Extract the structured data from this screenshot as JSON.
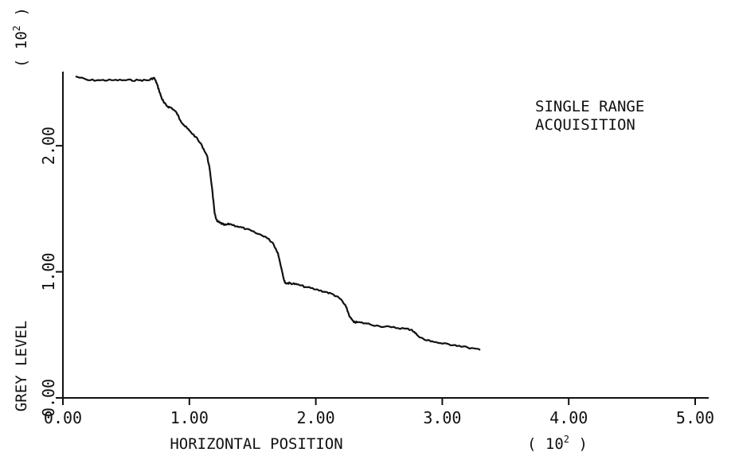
{
  "chart_data": {
    "type": "line",
    "title": "",
    "xlabel": "HORIZONTAL POSITION",
    "ylabel": "GREY LEVEL",
    "x_scale_label": "( 10",
    "x_scale_exp": "2",
    "x_scale_close": " )",
    "y_scale_label": "( 10",
    "y_scale_exp": "2",
    "y_scale_close": " )",
    "annotation": [
      "SINGLE RANGE",
      "ACQUISITION"
    ],
    "xlim": [
      0,
      5.0
    ],
    "ylim": [
      0,
      2.55
    ],
    "x_ticks": [
      {
        "value": 0.0,
        "label": "0.00"
      },
      {
        "value": 1.0,
        "label": "1.00"
      },
      {
        "value": 2.0,
        "label": "2.00"
      },
      {
        "value": 3.0,
        "label": "3.00"
      },
      {
        "value": 4.0,
        "label": "4.00"
      },
      {
        "value": 5.0,
        "label": "5.00"
      }
    ],
    "y_ticks": [
      {
        "value": 0.0,
        "label": "0.00"
      },
      {
        "value": 1.0,
        "label": "1.00"
      },
      {
        "value": 2.0,
        "label": "2.00"
      }
    ],
    "grid": false,
    "legend": "none",
    "line_color": "#111111",
    "series": [
      {
        "x": [
          0.1,
          0.2,
          0.3,
          0.4,
          0.5,
          0.6,
          0.68,
          0.72,
          0.74,
          0.76,
          0.78,
          0.8,
          0.83,
          0.86,
          0.9,
          0.93,
          0.96,
          1.0,
          1.05,
          1.1,
          1.14,
          1.16,
          1.18,
          1.2,
          1.22,
          1.24,
          1.26,
          1.28,
          1.32,
          1.38,
          1.45,
          1.52,
          1.6,
          1.66,
          1.7,
          1.73,
          1.75,
          1.76,
          1.78,
          1.8,
          1.85,
          1.92,
          2.0,
          2.08,
          2.14,
          2.2,
          2.24,
          2.27,
          2.3,
          2.33,
          2.4,
          2.5,
          2.6,
          2.7,
          2.76,
          2.8,
          2.86,
          2.92,
          3.0,
          3.1,
          3.2,
          3.3
        ],
        "y": [
          2.55,
          2.52,
          2.52,
          2.52,
          2.52,
          2.52,
          2.52,
          2.54,
          2.5,
          2.44,
          2.38,
          2.34,
          2.31,
          2.3,
          2.26,
          2.2,
          2.16,
          2.12,
          2.07,
          2.0,
          1.92,
          1.82,
          1.66,
          1.46,
          1.4,
          1.39,
          1.38,
          1.37,
          1.38,
          1.36,
          1.34,
          1.31,
          1.28,
          1.23,
          1.15,
          1.02,
          0.93,
          0.91,
          0.91,
          0.91,
          0.9,
          0.88,
          0.86,
          0.84,
          0.82,
          0.78,
          0.72,
          0.64,
          0.6,
          0.6,
          0.59,
          0.57,
          0.56,
          0.55,
          0.54,
          0.5,
          0.46,
          0.45,
          0.43,
          0.42,
          0.4,
          0.38
        ]
      }
    ]
  }
}
